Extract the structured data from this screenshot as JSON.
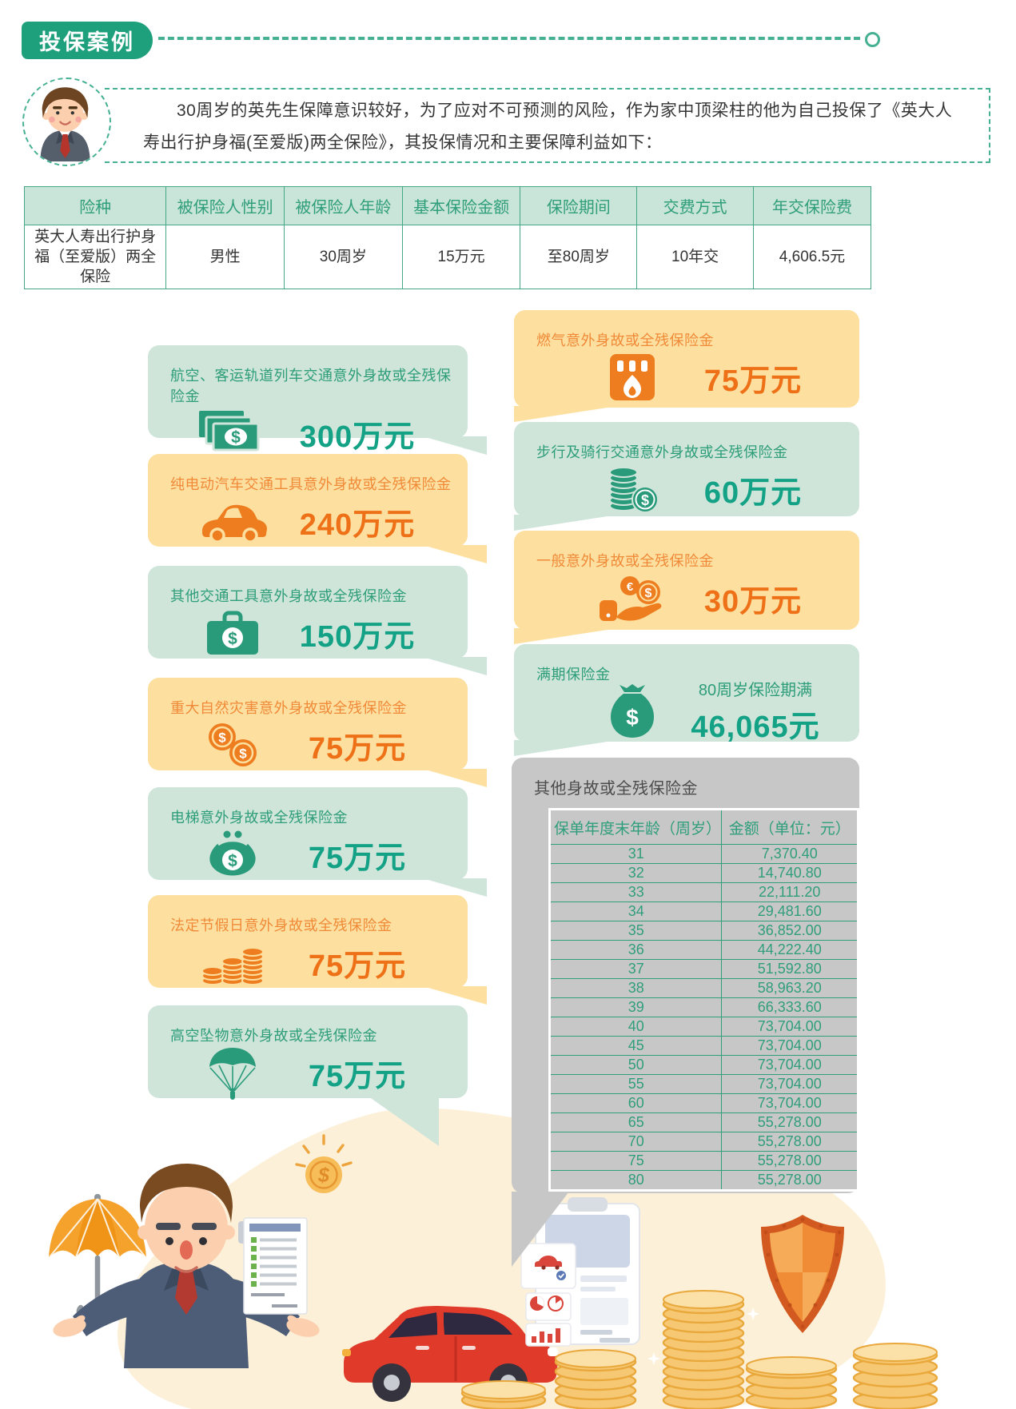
{
  "header": {
    "title": "投保案例"
  },
  "intro": {
    "text": "30周岁的英先生保障意识较好，为了应对不可预测的风险，作为家中顶梁柱的他为自己投保了《英大人寿出行护身福(至爱版)两全保险》，其投保情况和主要保障利益如下："
  },
  "policy_table": {
    "headers": [
      "险种",
      "被保险人性别",
      "被保险人年龄",
      "基本保险金额",
      "保险期间",
      "交费方式",
      "年交保险费"
    ],
    "row": [
      "英大人寿出行护身福（至爱版）两全保险",
      "男性",
      "30周岁",
      "15万元",
      "至80周岁",
      "10年交",
      "4,606.5元"
    ]
  },
  "benefit_cards_left": [
    {
      "label": "航空、客运轨道列车交通意外身故或全残保险金",
      "value": "300万元",
      "icon": "banknotes-icon",
      "theme": "green"
    },
    {
      "label": "纯电动汽车交通工具意外身故或全残保险金",
      "value": "240万元",
      "icon": "car-icon",
      "theme": "orange"
    },
    {
      "label": "其他交通工具意外身故或全残保险金",
      "value": "150万元",
      "icon": "briefcase-dollar-icon",
      "theme": "green"
    },
    {
      "label": "重大自然灾害意外身故或全残保险金",
      "value": "75万元",
      "icon": "coins-icon",
      "theme": "orange"
    },
    {
      "label": "电梯意外身故或全残保险金",
      "value": "75万元",
      "icon": "coin-purse-icon",
      "theme": "green"
    },
    {
      "label": "法定节假日意外身故或全残保险金",
      "value": "75万元",
      "icon": "coin-stacks-icon",
      "theme": "orange"
    },
    {
      "label": "高空坠物意外身故或全残保险金",
      "value": "75万元",
      "icon": "parachute-icon",
      "theme": "green"
    }
  ],
  "benefit_cards_right": [
    {
      "label": "燃气意外身故或全残保险金",
      "value": "75万元",
      "icon": "gas-heater-icon",
      "theme": "orange"
    },
    {
      "label": "步行及骑行交通意外身故或全残保险金",
      "value": "60万元",
      "icon": "coin-stack-dollar-icon",
      "theme": "green"
    },
    {
      "label": "一般意外身故或全残保险金",
      "value": "30万元",
      "icon": "hand-coins-icon",
      "theme": "orange"
    }
  ],
  "maturity_card": {
    "label": "满期保险金",
    "condition": "80周岁保险期满",
    "value": "46,065元",
    "icon": "money-bag-icon",
    "theme": "green"
  },
  "other_benefit_card": {
    "label": "其他身故或全残保险金",
    "table": {
      "headers": [
        "保单年度末年龄（周岁）",
        "金额（单位：元）"
      ],
      "rows": [
        [
          "31",
          "7,370.40"
        ],
        [
          "32",
          "14,740.80"
        ],
        [
          "33",
          "22,111.20"
        ],
        [
          "34",
          "29,481.60"
        ],
        [
          "35",
          "36,852.00"
        ],
        [
          "36",
          "44,222.40"
        ],
        [
          "37",
          "51,592.80"
        ],
        [
          "38",
          "58,963.20"
        ],
        [
          "39",
          "66,333.60"
        ],
        [
          "40",
          "73,704.00"
        ],
        [
          "45",
          "73,704.00"
        ],
        [
          "50",
          "73,704.00"
        ],
        [
          "55",
          "73,704.00"
        ],
        [
          "60",
          "73,704.00"
        ],
        [
          "65",
          "55,278.00"
        ],
        [
          "70",
          "55,278.00"
        ],
        [
          "75",
          "55,278.00"
        ],
        [
          "80",
          "55,278.00"
        ]
      ]
    }
  },
  "illustration_icons": [
    "umbrella-icon",
    "businessman-illustration",
    "checklist-document-icon",
    "dollar-coin-icon",
    "red-car-illustration",
    "insurance-report-clipboard",
    "shield-icon",
    "gold-coin-stacks"
  ],
  "colors": {
    "brand-green": "#1fa07c",
    "dashed-line": "#45b092",
    "green-card-bg": "#cfe5da",
    "orange-card-bg": "#fde0a0",
    "gray-card-bg": "#c8c7c7",
    "green-label": "#2e9d7a",
    "green-value": "#13a285",
    "orange-label": "#f08a38",
    "orange-value": "#ee7118",
    "table-border": "#44a886",
    "table-header-bg": "#c9e4d8",
    "inner-table-green": "#2f9e7b",
    "blob": "#fcf0d8"
  }
}
